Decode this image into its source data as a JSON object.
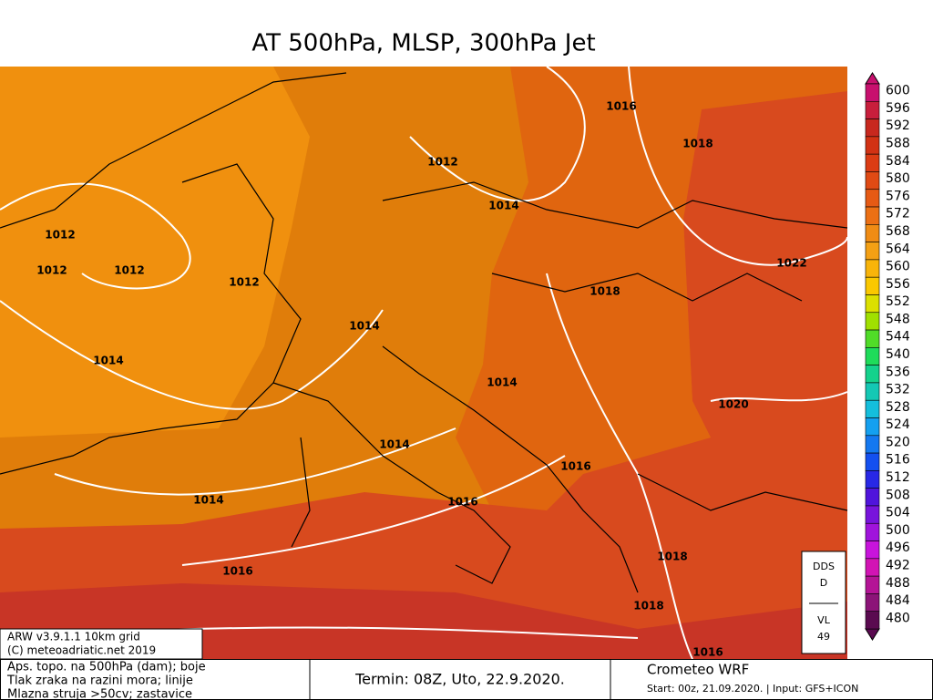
{
  "title": "AT 500hPa, MLSP, 300hPa Jet",
  "isobar_labels": [
    "1012",
    "1014",
    "1016",
    "1018",
    "1012",
    "1012",
    "1012",
    "1012",
    "1014",
    "1018",
    "1022",
    "1014",
    "1014",
    "1020",
    "1014",
    "1016",
    "1014",
    "1016",
    "1016",
    "1018",
    "1018",
    "1016"
  ],
  "colorbar": {
    "labels": [
      "600",
      "596",
      "592",
      "588",
      "584",
      "580",
      "576",
      "572",
      "568",
      "564",
      "560",
      "556",
      "552",
      "548",
      "544",
      "540",
      "536",
      "532",
      "528",
      "524",
      "520",
      "516",
      "512",
      "508",
      "504",
      "500",
      "496",
      "492",
      "488",
      "484",
      "480"
    ],
    "colors": [
      "#c8106e",
      "#c81e3c",
      "#c8281e",
      "#d23214",
      "#dc3c14",
      "#e04a14",
      "#e65a14",
      "#ec7014",
      "#f08c14",
      "#f4a014",
      "#f8b40a",
      "#fac800",
      "#dce000",
      "#a0e000",
      "#50dc28",
      "#1edc5a",
      "#14d28c",
      "#14c8b4",
      "#14bedc",
      "#14a0f0",
      "#1478f0",
      "#1450f0",
      "#2828e6",
      "#5014dc",
      "#7814dc",
      "#a014dc",
      "#c814dc",
      "#d214b4",
      "#b41496",
      "#8c1478",
      "#5a0a50"
    ]
  },
  "model_box": {
    "line1": "ARW v3.9.1.1 10km grid",
    "line2": "(C) meteoadriatic.net 2019"
  },
  "station_box": {
    "top1": "DDS",
    "top2": "D",
    "bottom1": "VL",
    "bottom2": "49"
  },
  "footer": {
    "legend_lines": [
      "Aps. topo. na 500hPa (dam); boje",
      "Tlak zraka na razini mora; linije",
      "Mlazna struja >50cv; zastavice"
    ],
    "termin": "Termin: 08Z, Uto, 22.9.2020.",
    "product": "Crometeo WRF",
    "start": "Start: 00z, 21.09.2020. | Input: GFS+ICON"
  }
}
